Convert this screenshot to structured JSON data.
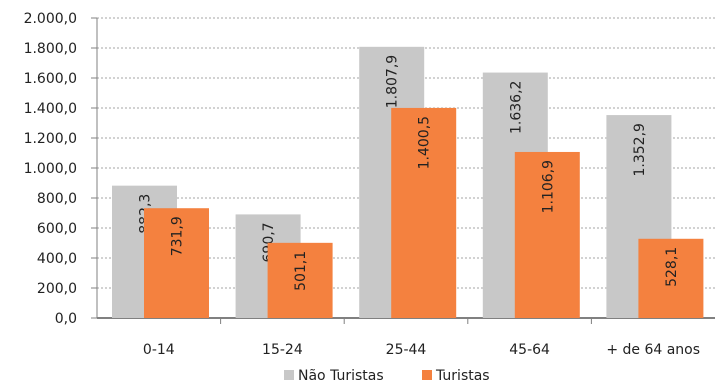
{
  "chart_data": {
    "type": "bar",
    "categories": [
      "0-14",
      "15-24",
      "25-44",
      "45-64",
      "+ de 64 anos"
    ],
    "series": [
      {
        "name": "Não Turistas",
        "values": [
          882.3,
          690.7,
          1807.9,
          1636.2,
          1352.9
        ],
        "labels": [
          "882,3",
          "690,7",
          "1.807,9",
          "1.636,2",
          "1.352,9"
        ],
        "color": "#c8c8c8"
      },
      {
        "name": "Turistas",
        "values": [
          731.9,
          501.1,
          1400.5,
          1106.9,
          528.1
        ],
        "labels": [
          "731,9",
          "501,1",
          "1.400,5",
          "1.106,9",
          "528,1"
        ],
        "color": "#f4813f"
      }
    ],
    "y_ticks": [
      "0,0",
      "200,0",
      "400,0",
      "600,0",
      "800,0",
      "1.000,0",
      "1.200,0",
      "1.400,0",
      "1.600,0",
      "1.800,0",
      "2.000,0"
    ],
    "ylim": [
      0,
      2000
    ],
    "grid": true,
    "legend": "bottom-center"
  }
}
